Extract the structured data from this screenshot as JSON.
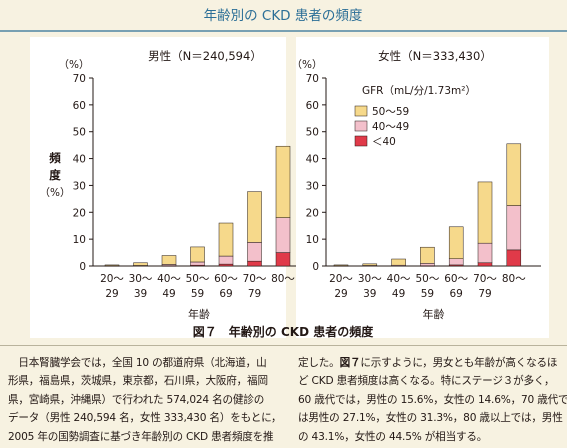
{
  "page_title": "年齢別の CKD 患者の頻度",
  "figure_caption": "図７　年齢別の CKD 患者の頻度",
  "colors": {
    "accent": "#2c6f97",
    "background": "#f7f2e1",
    "plot_background": "#ffffff",
    "stage_50_59": "#f6d98b",
    "stage_40_49": "#f3c0cb",
    "stage_lt_40": "#e03a49"
  },
  "chart_data": [
    {
      "type": "bar",
      "stacked": true,
      "title": "男性（N＝240,594）",
      "ylabel": "頻度（%）",
      "y_unit_label": "（%）",
      "xlabel": "年齢",
      "ylim": [
        0,
        70
      ],
      "yticks": [
        "0",
        "10",
        "20",
        "30",
        "40",
        "50",
        "60",
        "70"
      ],
      "categories": [
        "20〜29",
        "30〜39",
        "40〜49",
        "50〜59",
        "60〜69",
        "70〜79",
        "80〜"
      ],
      "category_labels": [
        [
          "20〜",
          "29"
        ],
        [
          "30〜",
          "39"
        ],
        [
          "40〜",
          "49"
        ],
        [
          "50〜",
          "59"
        ],
        [
          "60〜",
          "69"
        ],
        [
          "70〜",
          "79"
        ],
        [
          "80〜",
          ""
        ]
      ],
      "series": [
        {
          "name": "＜40",
          "color": "#e03a49",
          "values": [
            0,
            0,
            0.1,
            0.3,
            0.7,
            1.8,
            5.0
          ]
        },
        {
          "name": "40〜49",
          "color": "#f3c0cb",
          "values": [
            0.1,
            0.2,
            0.5,
            1.2,
            3.0,
            7.0,
            13.0
          ]
        },
        {
          "name": "50〜59",
          "color": "#f6d98b",
          "values": [
            0.3,
            1.0,
            3.3,
            5.6,
            12.3,
            18.9,
            26.6
          ]
        }
      ],
      "grid": false,
      "legend": "none"
    },
    {
      "type": "bar",
      "stacked": true,
      "title": "女性（N＝333,430）",
      "y_unit_label": "（%）",
      "xlabel": "年齢",
      "ylim": [
        0,
        70
      ],
      "yticks": [
        "0",
        "10",
        "20",
        "30",
        "40",
        "50",
        "60",
        "70"
      ],
      "categories": [
        "20〜29",
        "30〜39",
        "40〜49",
        "50〜59",
        "60〜69",
        "70〜79",
        "80〜"
      ],
      "category_labels": [
        [
          "20〜",
          "29"
        ],
        [
          "30〜",
          "39"
        ],
        [
          "40〜",
          "49"
        ],
        [
          "50〜",
          "59"
        ],
        [
          "60〜",
          "69"
        ],
        [
          "70〜",
          "79"
        ],
        [
          "80〜",
          ""
        ]
      ],
      "series": [
        {
          "name": "＜40",
          "color": "#e03a49",
          "values": [
            0,
            0,
            0,
            0.1,
            0.4,
            1.2,
            6.0
          ]
        },
        {
          "name": "40〜49",
          "color": "#f3c0cb",
          "values": [
            0.1,
            0.2,
            0.3,
            0.9,
            2.3,
            7.3,
            16.5
          ]
        },
        {
          "name": "50〜59",
          "color": "#f6d98b",
          "values": [
            0.3,
            0.6,
            2.3,
            6.0,
            11.9,
            22.8,
            23.0
          ]
        }
      ],
      "grid": false,
      "legend": "top-right",
      "legend_title": "GFR（mL/分/1.73m²）",
      "legend_entries": [
        "50〜59",
        "40〜49",
        "＜40"
      ]
    }
  ],
  "body_text": {
    "left": [
      "　日本腎臓学会では，全国 10 の都道府県（北海道，山",
      "形県，福島県，茨城県，東京都，石川県，大阪府，福岡",
      "県，宮崎県，沖縄県）で行われた 574,024 名の健診の",
      "データ（男性 240,594 名，女性 333,430 名）をもとに，",
      "2005 年の国勢調査に基づき年齢別の CKD 患者頻度を推"
    ],
    "right_ref": "図７",
    "right_first": [
      "定した。",
      "に示すように，男女とも年齢が高くなるほ"
    ],
    "right_rest": [
      "ど CKD 患者頻度は高くなる。特にステージ３が多く，",
      "60 歳代では，男性の 15.6%，女性の 14.6%，70 歳代で",
      "は男性の 27.1%，女性の 31.3%，80 歳以上では，男性",
      "の 43.1%，女性の 44.5% が相当する。"
    ]
  }
}
